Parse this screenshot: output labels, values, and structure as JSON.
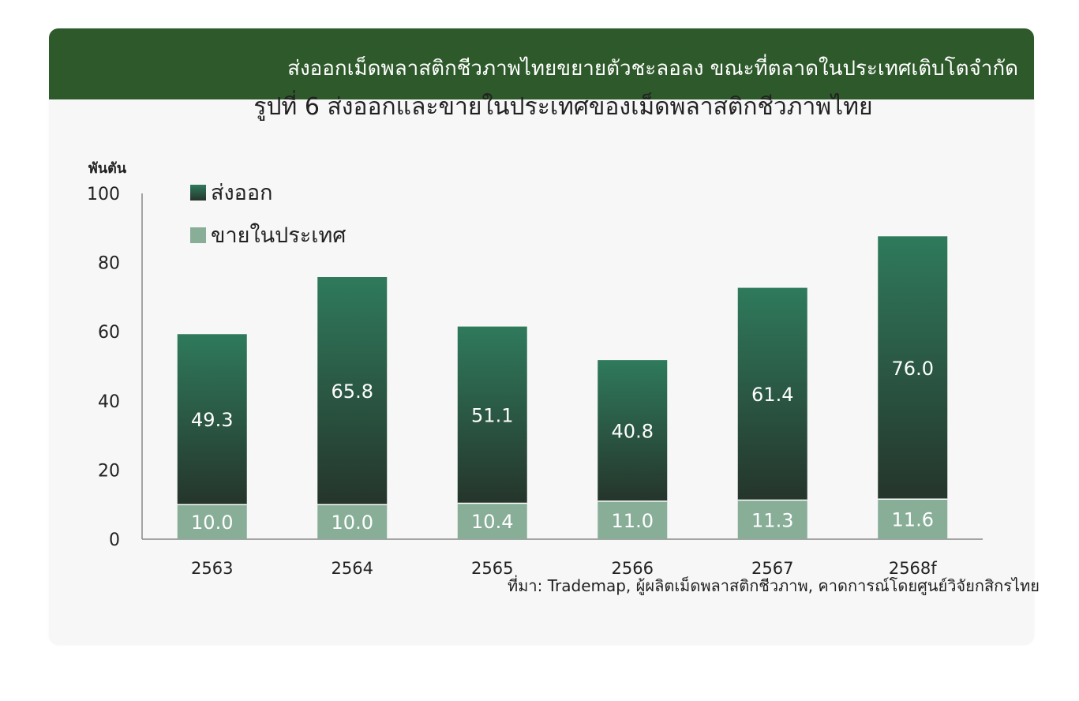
{
  "banner": {
    "headline": "ส่งออกเม็ดพลาสติกชีวภาพไทยขยายตัวชะลอลง ขณะที่ตลาดในประเทศเติบโตจำกัด"
  },
  "figure": {
    "title": "รูปที่ 6  ส่งออกและขายในประเทศของเม็ดพลาสติกชีวภาพไทย",
    "source": "ที่มา: Trademap, ผู้ผลิตเม็ดพลาสติกชีวภาพ, คาดการณ์โดยศูนย์วิจัยกสิกรไทย"
  },
  "colors": {
    "banner": "#2e5a2b",
    "export_top": "#2f7a5c",
    "export_bottom": "#25352b",
    "domestic": "#88ae98"
  },
  "chart_data": {
    "type": "bar",
    "stacked": true,
    "categories": [
      "2563",
      "2564",
      "2565",
      "2566",
      "2567",
      "2568f"
    ],
    "series": [
      {
        "name": "ขายในประเทศ",
        "values": [
          10.0,
          10.0,
          10.4,
          11.0,
          11.3,
          11.6
        ]
      },
      {
        "name": "ส่งออก",
        "values": [
          49.3,
          65.8,
          51.1,
          40.8,
          61.4,
          76.0
        ]
      }
    ],
    "ylabel": "พันตัน",
    "ylim": [
      0,
      100
    ],
    "yticks": [
      0,
      20,
      40,
      60,
      80,
      100
    ],
    "legend_position": "top-left",
    "grid": false
  }
}
